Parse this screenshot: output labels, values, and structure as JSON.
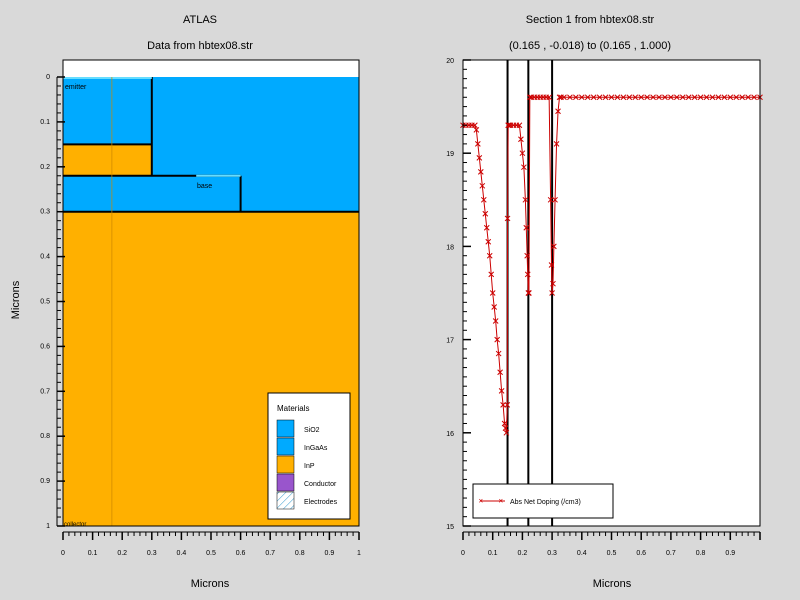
{
  "left_panel": {
    "title": "ATLAS",
    "subtitle": "Data from hbtex08.str",
    "xlabel": "Microns",
    "ylabel": "Microns",
    "x_ticks": [
      "0",
      "0.1",
      "0.2",
      "0.3",
      "0.4",
      "0.5",
      "0.6",
      "0.7",
      "0.8",
      "0.9",
      "1"
    ],
    "y_ticks": [
      "0",
      "0.1",
      "0.2",
      "0.3",
      "0.4",
      "0.5",
      "0.6",
      "0.7",
      "0.8",
      "0.9",
      "1"
    ],
    "region_labels": {
      "emitter": "emitter",
      "base": "base",
      "collector": "collector"
    },
    "legend": {
      "title": "Materials",
      "items": [
        {
          "label": "SiO2",
          "color": "#00aaff"
        },
        {
          "label": "InGaAs",
          "color": "#00aaff"
        },
        {
          "label": "InP",
          "color": "#ffb000"
        },
        {
          "label": "Conductor",
          "color": "#9955cc"
        },
        {
          "label": "Electrodes",
          "color": "hatch"
        }
      ]
    },
    "colors": {
      "blue": "#00aaff",
      "orange": "#ffb000",
      "contact": "#66ddff"
    }
  },
  "right_panel": {
    "title": "Section 1 from hbtex08.str",
    "subtitle": "(0.165 , -0.018) to (0.165 , 1.000)",
    "xlabel": "Microns",
    "x_ticks": [
      "0",
      "0.1",
      "0.2",
      "0.3",
      "0.4",
      "0.5",
      "0.6",
      "0.7",
      "0.8",
      "0.9"
    ],
    "y_ticks": [
      "15",
      "16",
      "17",
      "18",
      "19",
      "20"
    ],
    "legend_label": "Abs Net Doping (/cm3)"
  },
  "chart_data": [
    {
      "type": "heatmap",
      "title": "ATLAS",
      "subtitle": "Data from hbtex08.str",
      "xlabel": "Microns",
      "ylabel": "Microns",
      "xlim": [
        0,
        1
      ],
      "ylim": [
        1,
        0
      ],
      "regions": [
        {
          "material": "InGaAs",
          "x": [
            0,
            0.3
          ],
          "y": [
            0,
            0.15
          ]
        },
        {
          "material": "InP",
          "x": [
            0,
            0.3
          ],
          "y": [
            0.15,
            0.22
          ]
        },
        {
          "material": "InGaAs",
          "x": [
            0,
            0.6
          ],
          "y": [
            0.22,
            0.3
          ]
        },
        {
          "material": "SiO2",
          "x": [
            0.3,
            1
          ],
          "y": [
            0,
            0.3
          ]
        },
        {
          "material": "InP",
          "x": [
            0,
            1
          ],
          "y": [
            0.3,
            1
          ]
        }
      ],
      "electrodes": [
        {
          "name": "emitter",
          "x": [
            0,
            0.3
          ],
          "y": 0
        },
        {
          "name": "base",
          "x": [
            0.45,
            0.6
          ],
          "y": 0.22
        },
        {
          "name": "collector",
          "x": [
            0,
            1
          ],
          "y": 1
        }
      ],
      "cutline_x": 0.165
    },
    {
      "type": "line",
      "title": "Section 1 from hbtex08.str",
      "subtitle": "(0.165 , -0.018) to (0.165 , 1.000)",
      "xlabel": "Microns",
      "ylabel": "",
      "xlim": [
        0,
        1
      ],
      "ylim": [
        15,
        20
      ],
      "log_scale": true,
      "grid": false,
      "legend_position": "bottom-left",
      "vlines": [
        0.15,
        0.22,
        0.3
      ],
      "series": [
        {
          "name": "Abs Net Doping (/cm3)",
          "color": "#cc0000",
          "x": [
            0.0,
            0.01,
            0.02,
            0.03,
            0.04,
            0.045,
            0.05,
            0.055,
            0.06,
            0.065,
            0.07,
            0.075,
            0.08,
            0.085,
            0.09,
            0.095,
            0.1,
            0.105,
            0.11,
            0.115,
            0.12,
            0.125,
            0.13,
            0.135,
            0.14,
            0.143,
            0.146,
            0.149,
            0.15,
            0.152,
            0.155,
            0.16,
            0.17,
            0.18,
            0.19,
            0.195,
            0.2,
            0.205,
            0.21,
            0.213,
            0.216,
            0.218,
            0.22,
            0.222,
            0.225,
            0.23,
            0.24,
            0.25,
            0.26,
            0.27,
            0.28,
            0.29,
            0.295,
            0.298,
            0.3,
            0.303,
            0.306,
            0.31,
            0.315,
            0.32,
            0.325,
            0.33,
            0.34,
            0.36,
            0.38,
            0.4,
            0.42,
            0.44,
            0.46,
            0.48,
            0.5,
            0.52,
            0.54,
            0.56,
            0.58,
            0.6,
            0.62,
            0.64,
            0.66,
            0.68,
            0.7,
            0.72,
            0.74,
            0.76,
            0.78,
            0.8,
            0.82,
            0.84,
            0.86,
            0.88,
            0.9,
            0.92,
            0.94,
            0.96,
            0.98,
            1.0
          ],
          "y": [
            19.3,
            19.3,
            19.3,
            19.3,
            19.3,
            19.25,
            19.1,
            18.95,
            18.8,
            18.65,
            18.5,
            18.35,
            18.2,
            18.05,
            17.9,
            17.7,
            17.5,
            17.35,
            17.2,
            17.0,
            16.85,
            16.65,
            16.45,
            16.3,
            16.1,
            16.05,
            16.0,
            16.3,
            18.3,
            19.3,
            19.3,
            19.3,
            19.3,
            19.3,
            19.3,
            19.15,
            19.0,
            18.85,
            18.5,
            18.2,
            17.9,
            17.7,
            17.5,
            17.5,
            19.6,
            19.6,
            19.6,
            19.6,
            19.6,
            19.6,
            19.6,
            19.6,
            18.5,
            17.8,
            17.5,
            17.6,
            18.0,
            18.5,
            19.1,
            19.45,
            19.6,
            19.6,
            19.6,
            19.6,
            19.6,
            19.6,
            19.6,
            19.6,
            19.6,
            19.6,
            19.6,
            19.6,
            19.6,
            19.6,
            19.6,
            19.6,
            19.6,
            19.6,
            19.6,
            19.6,
            19.6,
            19.6,
            19.6,
            19.6,
            19.6,
            19.6,
            19.6,
            19.6,
            19.6,
            19.6,
            19.6,
            19.6,
            19.6,
            19.6,
            19.6,
            19.6
          ]
        }
      ]
    }
  ]
}
